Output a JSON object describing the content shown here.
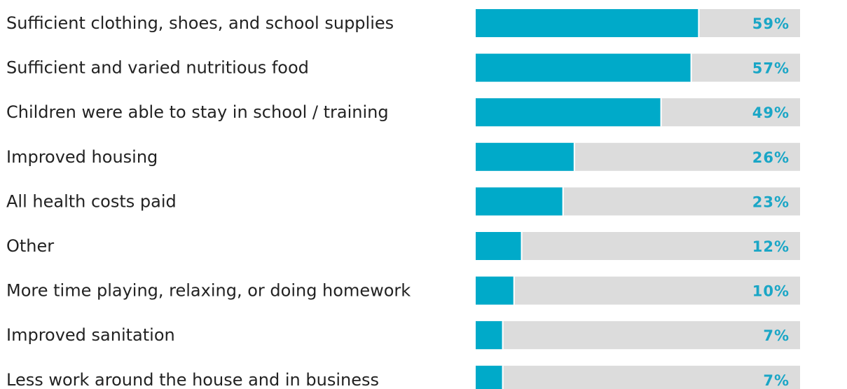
{
  "chart_data": {
    "type": "hbar",
    "categories": [
      "Sufficient clothing, shoes, and school supplies",
      "Sufficient and varied nutritious food",
      "Children were able to stay in school / training",
      "Improved housing",
      "All health costs paid",
      "Other",
      "More time playing, relaxing, or doing homework",
      "Improved sanitation",
      "Less work around the house and in business"
    ],
    "values": [
      59,
      57,
      49,
      26,
      23,
      12,
      10,
      7,
      7
    ],
    "value_labels": [
      "59%",
      "57%",
      "49%",
      "26%",
      "23%",
      "12%",
      "10%",
      "7%",
      "7%"
    ],
    "color": "#00aac9",
    "track_color": "#dcdcdc",
    "label_color": "#1aa6c6",
    "xlim": [
      0,
      100
    ]
  }
}
